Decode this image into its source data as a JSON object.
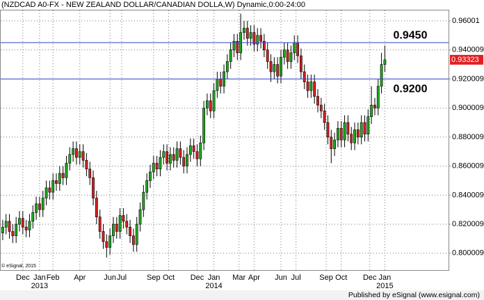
{
  "chart_data": {
    "type": "candlestick",
    "title": "(NZDCAD A0-FX - NEW ZEALAND DOLLAR/CANADIAN DOLLA,W) Dynamic,0:00-24:00",
    "open": [
      0.814,
      0.818,
      0.822,
      0.815,
      0.812,
      0.82,
      0.824,
      0.818,
      0.816,
      0.822,
      0.828,
      0.834,
      0.83,
      0.838,
      0.845,
      0.842,
      0.85,
      0.848,
      0.855,
      0.852,
      0.862,
      0.868,
      0.872,
      0.866,
      0.87,
      0.864,
      0.858,
      0.852,
      0.838,
      0.825,
      0.815,
      0.808,
      0.804,
      0.812,
      0.82,
      0.815,
      0.826,
      0.822,
      0.818,
      0.812,
      0.806,
      0.82,
      0.83,
      0.842,
      0.85,
      0.856,
      0.862,
      0.858,
      0.866,
      0.87,
      0.862,
      0.868,
      0.864,
      0.872,
      0.866,
      0.86,
      0.868,
      0.874,
      0.87,
      0.865,
      0.876,
      0.9,
      0.905,
      0.898,
      0.912,
      0.92,
      0.915,
      0.925,
      0.932,
      0.94,
      0.946,
      0.938,
      0.952,
      0.955,
      0.948,
      0.952,
      0.944,
      0.95,
      0.946,
      0.94,
      0.932,
      0.925,
      0.93,
      0.922,
      0.935,
      0.94,
      0.932,
      0.938,
      0.945,
      0.936,
      0.925,
      0.918,
      0.912,
      0.918,
      0.908,
      0.902,
      0.898,
      0.89,
      0.88,
      0.872,
      0.878,
      0.886,
      0.878,
      0.89,
      0.882,
      0.876,
      0.885,
      0.88,
      0.89,
      0.882,
      0.894,
      0.902,
      0.9,
      0.915,
      0.93
    ],
    "high": [
      0.823,
      0.827,
      0.827,
      0.82,
      0.825,
      0.829,
      0.829,
      0.823,
      0.827,
      0.833,
      0.839,
      0.839,
      0.843,
      0.85,
      0.85,
      0.855,
      0.855,
      0.86,
      0.86,
      0.867,
      0.873,
      0.877,
      0.877,
      0.875,
      0.875,
      0.869,
      0.863,
      0.857,
      0.843,
      0.83,
      0.82,
      0.813,
      0.817,
      0.825,
      0.825,
      0.831,
      0.831,
      0.827,
      0.823,
      0.817,
      0.825,
      0.835,
      0.847,
      0.855,
      0.861,
      0.867,
      0.867,
      0.871,
      0.875,
      0.875,
      0.873,
      0.873,
      0.877,
      0.877,
      0.871,
      0.873,
      0.879,
      0.879,
      0.875,
      0.881,
      0.905,
      0.91,
      0.91,
      0.917,
      0.925,
      0.925,
      0.93,
      0.937,
      0.945,
      0.951,
      0.951,
      0.965,
      0.96,
      0.96,
      0.957,
      0.957,
      0.955,
      0.955,
      0.951,
      0.945,
      0.937,
      0.935,
      0.935,
      0.94,
      0.945,
      0.945,
      0.943,
      0.95,
      0.95,
      0.941,
      0.93,
      0.923,
      0.923,
      0.923,
      0.913,
      0.907,
      0.903,
      0.895,
      0.885,
      0.883,
      0.891,
      0.891,
      0.895,
      0.895,
      0.887,
      0.89,
      0.89,
      0.895,
      0.895,
      0.899,
      0.915,
      0.907,
      0.92,
      0.938,
      0.943
    ],
    "low": [
      0.809,
      0.813,
      0.81,
      0.807,
      0.807,
      0.815,
      0.813,
      0.811,
      0.811,
      0.817,
      0.823,
      0.825,
      0.825,
      0.833,
      0.837,
      0.837,
      0.843,
      0.843,
      0.847,
      0.847,
      0.857,
      0.863,
      0.861,
      0.861,
      0.859,
      0.853,
      0.847,
      0.833,
      0.82,
      0.81,
      0.803,
      0.797,
      0.799,
      0.807,
      0.81,
      0.81,
      0.817,
      0.813,
      0.807,
      0.801,
      0.801,
      0.815,
      0.825,
      0.837,
      0.845,
      0.851,
      0.853,
      0.853,
      0.861,
      0.857,
      0.857,
      0.859,
      0.859,
      0.861,
      0.855,
      0.855,
      0.863,
      0.865,
      0.86,
      0.86,
      0.871,
      0.895,
      0.893,
      0.893,
      0.907,
      0.91,
      0.91,
      0.92,
      0.927,
      0.935,
      0.933,
      0.933,
      0.947,
      0.943,
      0.943,
      0.939,
      0.939,
      0.941,
      0.935,
      0.927,
      0.918,
      0.92,
      0.917,
      0.917,
      0.93,
      0.927,
      0.927,
      0.933,
      0.931,
      0.92,
      0.913,
      0.907,
      0.907,
      0.903,
      0.897,
      0.893,
      0.885,
      0.875,
      0.862,
      0.867,
      0.873,
      0.873,
      0.873,
      0.877,
      0.871,
      0.871,
      0.875,
      0.875,
      0.877,
      0.877,
      0.889,
      0.895,
      0.895,
      0.91,
      0.925
    ],
    "close": [
      0.818,
      0.822,
      0.815,
      0.812,
      0.82,
      0.824,
      0.818,
      0.816,
      0.822,
      0.828,
      0.834,
      0.83,
      0.838,
      0.845,
      0.842,
      0.85,
      0.848,
      0.855,
      0.852,
      0.862,
      0.868,
      0.872,
      0.866,
      0.87,
      0.864,
      0.858,
      0.852,
      0.838,
      0.825,
      0.815,
      0.808,
      0.804,
      0.812,
      0.82,
      0.815,
      0.826,
      0.822,
      0.818,
      0.812,
      0.806,
      0.82,
      0.83,
      0.842,
      0.85,
      0.856,
      0.862,
      0.858,
      0.866,
      0.87,
      0.862,
      0.868,
      0.864,
      0.872,
      0.866,
      0.86,
      0.868,
      0.874,
      0.87,
      0.865,
      0.876,
      0.9,
      0.905,
      0.898,
      0.912,
      0.92,
      0.915,
      0.925,
      0.932,
      0.94,
      0.946,
      0.938,
      0.952,
      0.955,
      0.948,
      0.952,
      0.944,
      0.95,
      0.946,
      0.94,
      0.932,
      0.925,
      0.93,
      0.922,
      0.935,
      0.94,
      0.932,
      0.938,
      0.945,
      0.936,
      0.925,
      0.918,
      0.912,
      0.918,
      0.908,
      0.902,
      0.898,
      0.89,
      0.88,
      0.872,
      0.878,
      0.886,
      0.878,
      0.89,
      0.882,
      0.876,
      0.885,
      0.88,
      0.89,
      0.882,
      0.894,
      0.902,
      0.9,
      0.915,
      0.93,
      0.93323
    ],
    "up_color": "#1fa81f",
    "down_color": "#d42020",
    "price_tag_color": "#e02020",
    "xlim": [
      -0.6,
      133
    ],
    "xticks": [
      {
        "value": 6,
        "label": "Dec"
      },
      {
        "value": 11,
        "label": "Jan"
      },
      {
        "value": 15,
        "label": "Feb"
      },
      {
        "value": 23,
        "label": "Apr"
      },
      {
        "value": 32,
        "label": "Jun"
      },
      {
        "value": 35.5,
        "label": "Jul"
      },
      {
        "value": 45,
        "label": "Sep"
      },
      {
        "value": 49.5,
        "label": "Oct"
      },
      {
        "value": 58,
        "label": "Dec"
      },
      {
        "value": 63,
        "label": "Jan"
      },
      {
        "value": 70.5,
        "label": "Mar"
      },
      {
        "value": 75,
        "label": "Apr"
      },
      {
        "value": 83,
        "label": "Jun"
      },
      {
        "value": 87.5,
        "label": "Jul"
      },
      {
        "value": 96.5,
        "label": "Sep"
      },
      {
        "value": 101,
        "label": "Oct"
      },
      {
        "value": 109.5,
        "label": "Dec"
      },
      {
        "value": 114,
        "label": "Jan"
      }
    ],
    "year_labels": [
      {
        "value": 11,
        "label": "2013"
      },
      {
        "value": 63,
        "label": "2014"
      },
      {
        "value": 114,
        "label": "2015"
      }
    ],
    "ylim": [
      0.7884,
      0.9672
    ],
    "yticks": [
      {
        "value": 0.96,
        "label": "0.96001"
      },
      {
        "value": 0.94,
        "label": "0.940009"
      },
      {
        "value": 0.92,
        "label": "0.920009"
      },
      {
        "value": 0.9,
        "label": "0.900009"
      },
      {
        "value": 0.88,
        "label": "0.880009"
      },
      {
        "value": 0.86,
        "label": "0.860009"
      },
      {
        "value": 0.84,
        "label": "0.840009"
      },
      {
        "value": 0.82,
        "label": "0.820009"
      },
      {
        "value": 0.8,
        "label": "0.800009"
      }
    ],
    "grid": true,
    "hline_color": "#3344cc",
    "hlines": [
      {
        "value": 0.945,
        "label": "0.9450"
      },
      {
        "value": 0.92,
        "label": "0.9200"
      }
    ],
    "copyright": "© eSignal, 2015",
    "footer": "Published by eSignal (www.esignal.com)"
  }
}
